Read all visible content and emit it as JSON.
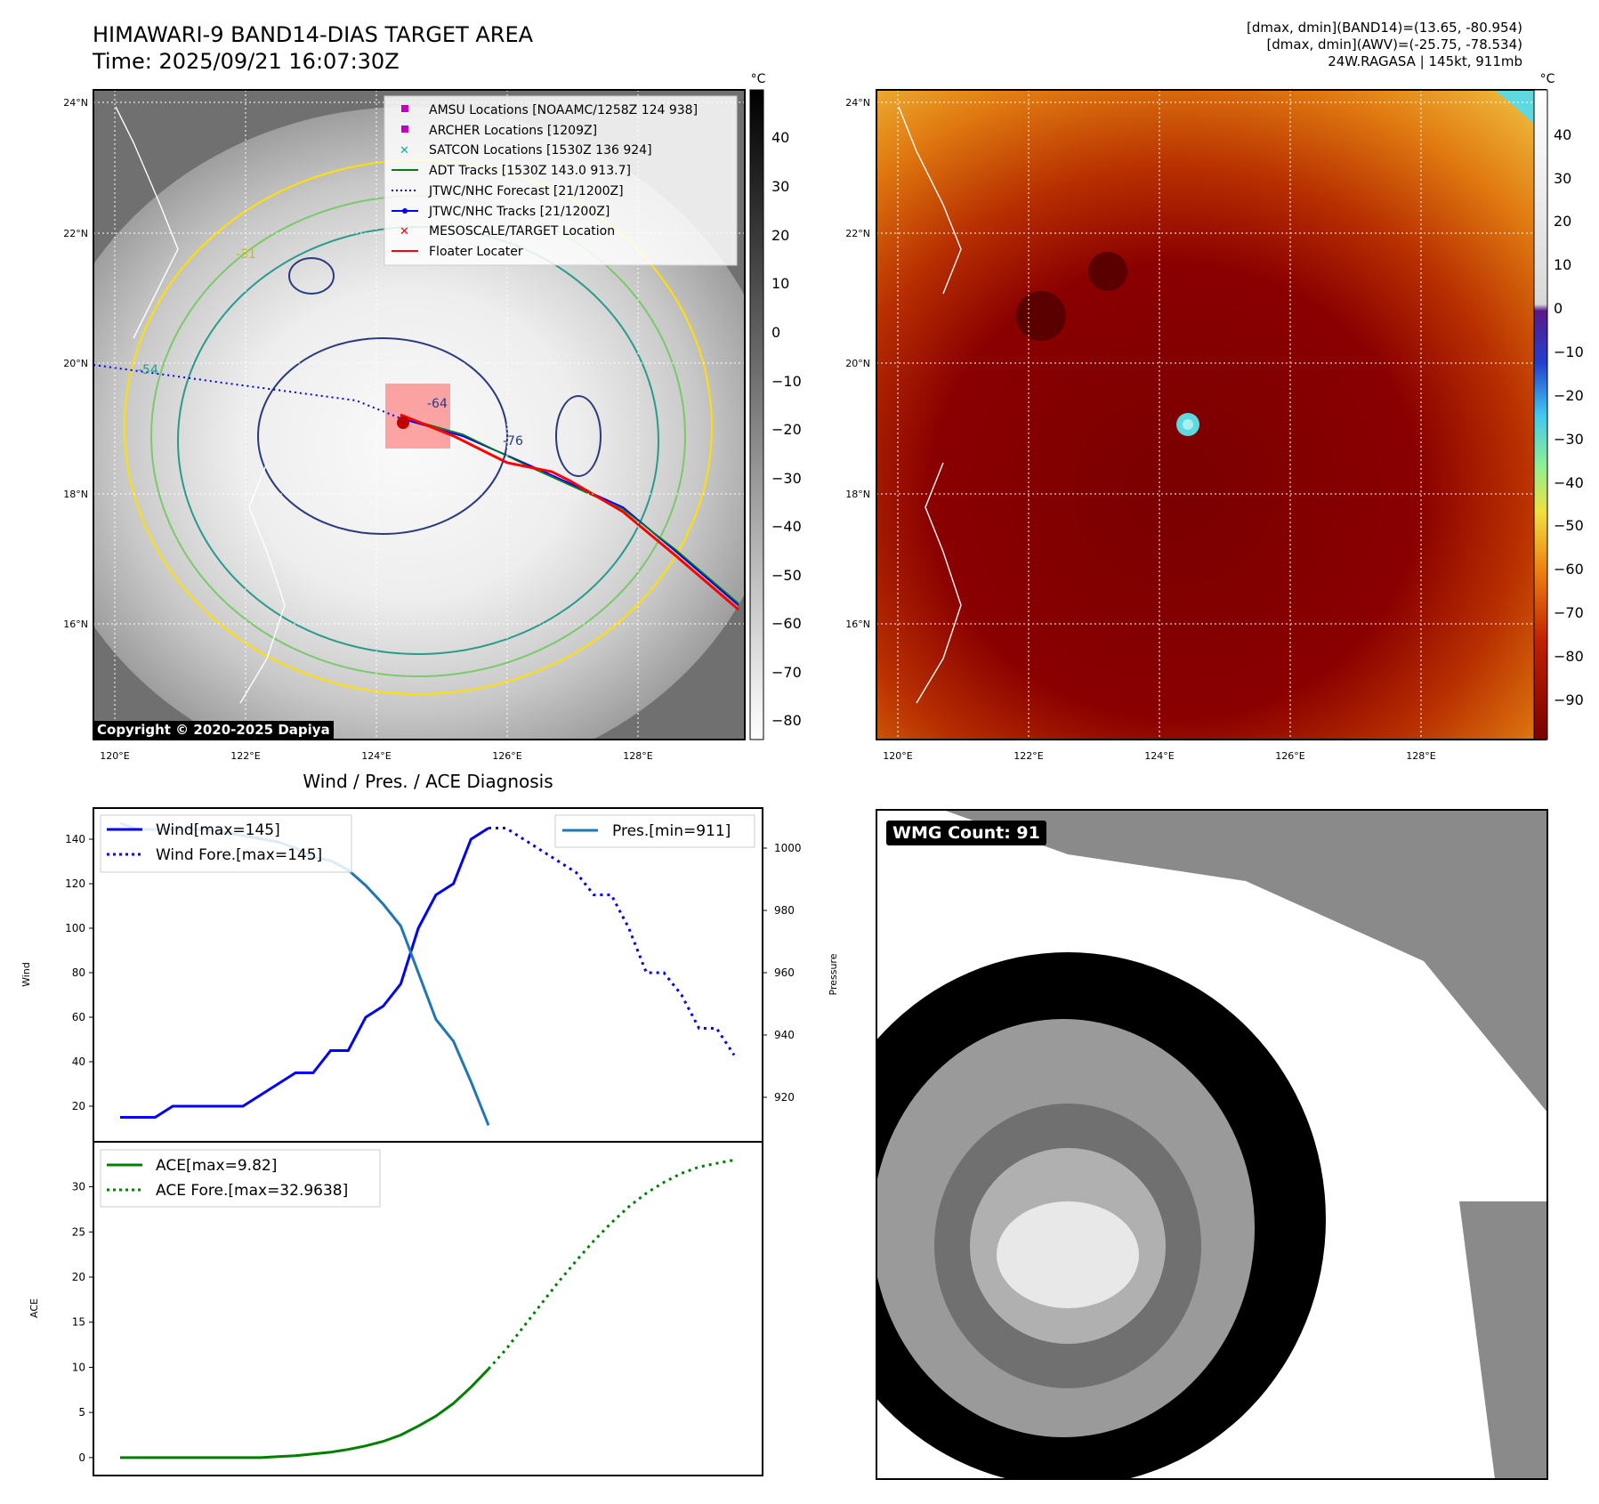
{
  "header": {
    "title_line1": "HIMAWARI-9 BAND14-DIAS TARGET AREA",
    "title_line2": "Time: 2025/09/21 16:07:30Z",
    "info_line1": "[dmax, dmin](BAND14)=(13.65, -80.954)",
    "info_line2": "[dmax, dmin](AWV)=(-25.75, -78.534)",
    "info_line3": "24W.RAGASA | 145kt, 911mb"
  },
  "map": {
    "lat_labels": [
      "24°N",
      "22°N",
      "20°N",
      "18°N",
      "16°N"
    ],
    "lon_labels": [
      "120°E",
      "122°E",
      "124°E",
      "126°E",
      "128°E"
    ],
    "copyright": "Copyright © 2020-2025 Dapiya",
    "colorbar_unit": "°C",
    "gray_ticks": [
      "40",
      "30",
      "20",
      "10",
      "0",
      "−10",
      "−20",
      "−30",
      "−40",
      "−50",
      "−60",
      "−70",
      "−80"
    ],
    "color_ticks": [
      "40",
      "30",
      "20",
      "10",
      "0",
      "−10",
      "−20",
      "−30",
      "−40",
      "−50",
      "−60",
      "−70",
      "−80",
      "−90"
    ],
    "contour_labels": [
      "-64",
      "-76",
      "-54",
      "-31"
    ],
    "legend": [
      {
        "label": "AMSU Locations [NOAAMC/1258Z 124 938]",
        "color": "#c000c0",
        "marker": "square"
      },
      {
        "label": "ARCHER Locations [1209Z]",
        "color": "#c000c0",
        "marker": "square"
      },
      {
        "label": "SATCON Locations [1530Z 136 924]",
        "color": "#00b0b0",
        "marker": "x"
      },
      {
        "label": "ADT Tracks [1530Z 143.0 913.7]",
        "color": "#008000",
        "marker": "line"
      },
      {
        "label": "JTWC/NHC Forecast [21/1200Z]",
        "color": "#0000ff",
        "marker": "dotted"
      },
      {
        "label": "JTWC/NHC Tracks [21/1200Z]",
        "color": "#0000ff",
        "marker": "dotline"
      },
      {
        "label": "MESOSCALE/TARGET Location",
        "color": "#ff0000",
        "marker": "x"
      },
      {
        "label": "Floater Locater",
        "color": "#ff0000",
        "marker": "line"
      }
    ]
  },
  "chart_data": [
    {
      "type": "line",
      "title": "Wind / Pres. / ACE Diagnosis",
      "ylabel": "Wind",
      "ylabel2": "Pressure",
      "ylim": [
        10,
        150
      ],
      "ylim2": [
        910,
        1010
      ],
      "yticks": [
        20,
        40,
        60,
        80,
        100,
        120,
        140
      ],
      "yticks2": [
        920,
        940,
        960,
        980,
        1000
      ],
      "series": [
        {
          "name": "Wind[max=145]",
          "style": "solid",
          "color": "#0000ff",
          "axis": "left",
          "values": [
            [
              0,
              15
            ],
            [
              1,
              15
            ],
            [
              2,
              15
            ],
            [
              3,
              20
            ],
            [
              4,
              20
            ],
            [
              5,
              20
            ],
            [
              6,
              20
            ],
            [
              7,
              20
            ],
            [
              8,
              25
            ],
            [
              9,
              30
            ],
            [
              10,
              35
            ],
            [
              11,
              35
            ],
            [
              12,
              45
            ],
            [
              13,
              45
            ],
            [
              14,
              60
            ],
            [
              15,
              65
            ],
            [
              16,
              75
            ],
            [
              17,
              100
            ],
            [
              18,
              115
            ],
            [
              19,
              120
            ],
            [
              20,
              140
            ],
            [
              21,
              145
            ]
          ]
        },
        {
          "name": "Wind Fore.[max=145]",
          "style": "dotted",
          "color": "#0000ff",
          "axis": "left",
          "values": [
            [
              21,
              145
            ],
            [
              22,
              145
            ],
            [
              23,
              140
            ],
            [
              24,
              135
            ],
            [
              25,
              130
            ],
            [
              26,
              125
            ],
            [
              27,
              115
            ],
            [
              28,
              115
            ],
            [
              29,
              100
            ],
            [
              30,
              80
            ],
            [
              31,
              80
            ],
            [
              32,
              70
            ],
            [
              33,
              55
            ],
            [
              34,
              55
            ],
            [
              35,
              43
            ]
          ]
        },
        {
          "name": "Pres.[min=911]",
          "style": "solid",
          "color": "#1f77b4",
          "axis": "right",
          "values": [
            [
              0,
              1008
            ],
            [
              1,
              1006
            ],
            [
              2,
              1006
            ],
            [
              3,
              1006
            ],
            [
              4,
              1006
            ],
            [
              5,
              1006
            ],
            [
              6,
              1005
            ],
            [
              7,
              1004
            ],
            [
              8,
              1003
            ],
            [
              9,
              1002
            ],
            [
              10,
              1000
            ],
            [
              11,
              997
            ],
            [
              12,
              996
            ],
            [
              13,
              993
            ],
            [
              14,
              988
            ],
            [
              15,
              982
            ],
            [
              16,
              975
            ],
            [
              17,
              960
            ],
            [
              18,
              945
            ],
            [
              19,
              938
            ],
            [
              20,
              925
            ],
            [
              21,
              911
            ]
          ]
        }
      ]
    },
    {
      "type": "line",
      "ylabel": "ACE",
      "ylim": [
        -1,
        34
      ],
      "yticks": [
        0,
        5,
        10,
        15,
        20,
        25,
        30
      ],
      "series": [
        {
          "name": "ACE[max=9.82]",
          "style": "solid",
          "color": "#008000",
          "values": [
            [
              0,
              0
            ],
            [
              1,
              0
            ],
            [
              2,
              0
            ],
            [
              3,
              0
            ],
            [
              4,
              0
            ],
            [
              5,
              0
            ],
            [
              6,
              0
            ],
            [
              7,
              0
            ],
            [
              8,
              0
            ],
            [
              9,
              0.1
            ],
            [
              10,
              0.2
            ],
            [
              11,
              0.4
            ],
            [
              12,
              0.6
            ],
            [
              13,
              0.9
            ],
            [
              14,
              1.3
            ],
            [
              15,
              1.8
            ],
            [
              16,
              2.5
            ],
            [
              17,
              3.5
            ],
            [
              18,
              4.6
            ],
            [
              19,
              6
            ],
            [
              20,
              7.8
            ],
            [
              21,
              9.82
            ]
          ]
        },
        {
          "name": "ACE Fore.[max=32.9638]",
          "style": "dotted",
          "color": "#008000",
          "values": [
            [
              21,
              9.82
            ],
            [
              22,
              12
            ],
            [
              23,
              14.5
            ],
            [
              24,
              17
            ],
            [
              25,
              19.5
            ],
            [
              26,
              21.8
            ],
            [
              27,
              24
            ],
            [
              28,
              26
            ],
            [
              29,
              27.8
            ],
            [
              30,
              29.3
            ],
            [
              31,
              30.5
            ],
            [
              32,
              31.5
            ],
            [
              33,
              32.2
            ],
            [
              34,
              32.6
            ],
            [
              35,
              32.9638
            ]
          ]
        }
      ]
    }
  ],
  "wmg": {
    "label": "WMG Count: 91"
  }
}
